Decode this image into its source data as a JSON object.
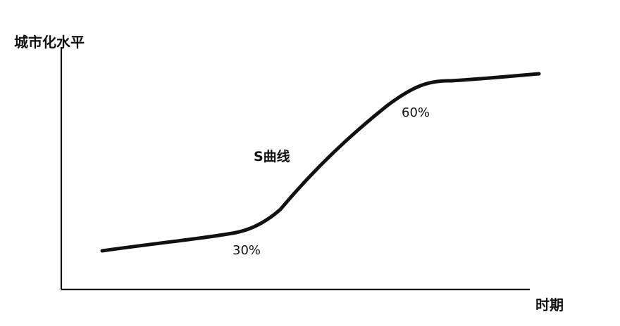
{
  "diagram": {
    "y_axis_title": "城市化水平",
    "x_axis_title": "时期",
    "curve_label": "S曲线",
    "threshold_low": "30%",
    "threshold_high": "60%"
  },
  "colors": {
    "ink": "#111111",
    "background": "#ffffff"
  }
}
